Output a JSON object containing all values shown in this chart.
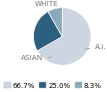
{
  "labels": [
    "WHITE",
    "A.I.",
    "ASIAN"
  ],
  "values": [
    66.7,
    25.0,
    8.3
  ],
  "colors": [
    "#cdd5e0",
    "#2d6080",
    "#8aaabb"
  ],
  "legend_labels": [
    "66.7%",
    "25.0%",
    "8.3%"
  ],
  "legend_colors": [
    "#cdd5e0",
    "#2d6080",
    "#8aaabb"
  ],
  "label_fontsize": 5.2,
  "legend_fontsize": 5.0,
  "startangle": 90,
  "background_color": "#ffffff",
  "text_color": "#777777",
  "line_color": "#999999"
}
